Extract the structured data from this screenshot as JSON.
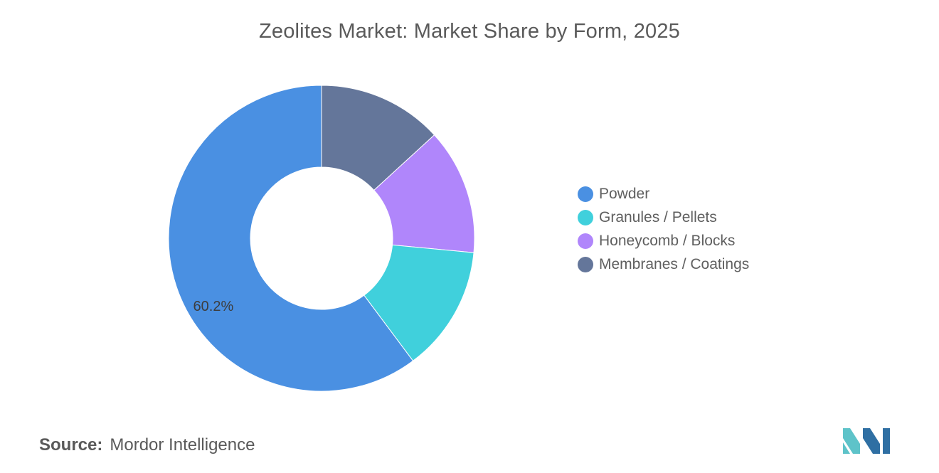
{
  "chart_data": {
    "type": "pie",
    "title": "Zeolites Market: Market Share by Form, 2025",
    "donut": true,
    "categories": [
      "Powder",
      "Granules / Pellets",
      "Honeycomb / Blocks",
      "Membranes / Coatings"
    ],
    "values": [
      60.2,
      13.3,
      13.3,
      13.2
    ],
    "colors": [
      "#4a90e2",
      "#40d0dc",
      "#b086fb",
      "#64769a"
    ],
    "data_labels": [
      {
        "category": "Powder",
        "text": "60.2%"
      }
    ],
    "legend": "right"
  },
  "source": {
    "label": "Source:",
    "value": "Mordor Intelligence"
  },
  "logo": {
    "colors": [
      "#5ec3c9",
      "#2f6fa3"
    ]
  }
}
